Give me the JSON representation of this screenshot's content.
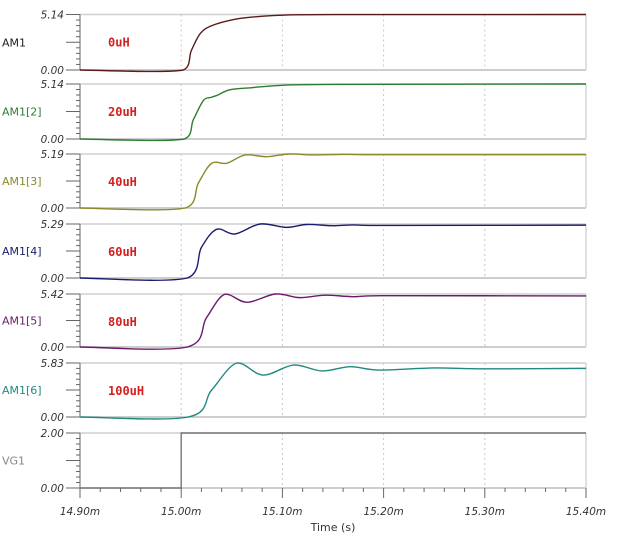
{
  "chart_data": [
    {
      "type": "line",
      "name": "AM1",
      "annotation": "0uH",
      "ylim": [
        0,
        5.14
      ],
      "yticks": [
        "0.00",
        "5.14"
      ],
      "color": "#5a1b1b",
      "label_color": "#222222",
      "points": [
        [
          14.9,
          0
        ],
        [
          15.002,
          0
        ],
        [
          15.01,
          1.8
        ],
        [
          15.019,
          3.4
        ],
        [
          15.03,
          4.1
        ],
        [
          15.05,
          4.64
        ],
        [
          15.07,
          4.9
        ],
        [
          15.1,
          5.08
        ],
        [
          15.15,
          5.13
        ],
        [
          15.4,
          5.14
        ]
      ]
    },
    {
      "type": "line",
      "name": "AM1[2]",
      "annotation": "20uH",
      "ylim": [
        0,
        5.14
      ],
      "yticks": [
        "0.00",
        "5.14"
      ],
      "color": "#2e7d32",
      "label_color": "#2e7d32",
      "points": [
        [
          14.9,
          0
        ],
        [
          15.003,
          0
        ],
        [
          15.012,
          1.8
        ],
        [
          15.022,
          3.6
        ],
        [
          15.03,
          3.9
        ],
        [
          15.036,
          4.1
        ],
        [
          15.048,
          4.6
        ],
        [
          15.07,
          4.8
        ],
        [
          15.1,
          5.02
        ],
        [
          15.15,
          5.1
        ],
        [
          15.4,
          5.14
        ]
      ]
    },
    {
      "type": "line",
      "name": "AM1[3]",
      "annotation": "40uH",
      "ylim": [
        0,
        5.19
      ],
      "yticks": [
        "0.00",
        "5.19"
      ],
      "color": "#8a8a28",
      "label_color": "#8a8a28",
      "points": [
        [
          14.9,
          0
        ],
        [
          15.004,
          0
        ],
        [
          15.017,
          2.4
        ],
        [
          15.03,
          4.29
        ],
        [
          15.045,
          4.3
        ],
        [
          15.063,
          5.09
        ],
        [
          15.085,
          4.93
        ],
        [
          15.106,
          5.19
        ],
        [
          15.13,
          5.1
        ],
        [
          15.16,
          5.15
        ],
        [
          15.2,
          5.12
        ],
        [
          15.4,
          5.13
        ]
      ]
    },
    {
      "type": "line",
      "name": "AM1[4]",
      "annotation": "60uH",
      "ylim": [
        0,
        5.29
      ],
      "yticks": [
        "0.00",
        "5.29"
      ],
      "color": "#1c1c6e",
      "label_color": "#1c1c6e",
      "points": [
        [
          14.9,
          0
        ],
        [
          15.006,
          0
        ],
        [
          15.02,
          3.0
        ],
        [
          15.035,
          4.77
        ],
        [
          15.053,
          4.31
        ],
        [
          15.078,
          5.29
        ],
        [
          15.104,
          4.96
        ],
        [
          15.124,
          5.24
        ],
        [
          15.15,
          5.12
        ],
        [
          15.17,
          5.2
        ],
        [
          15.2,
          5.15
        ],
        [
          15.4,
          5.18
        ]
      ]
    },
    {
      "type": "line",
      "name": "AM1[5]",
      "annotation": "80uH",
      "ylim": [
        0,
        5.42
      ],
      "yticks": [
        "0.00",
        "5.42"
      ],
      "color": "#6a1b6a",
      "label_color": "#6a1b6a",
      "points": [
        [
          14.9,
          0
        ],
        [
          15.006,
          0
        ],
        [
          15.025,
          3.0
        ],
        [
          15.043,
          5.39
        ],
        [
          15.065,
          4.57
        ],
        [
          15.093,
          5.42
        ],
        [
          15.117,
          5.05
        ],
        [
          15.142,
          5.3
        ],
        [
          15.17,
          5.15
        ],
        [
          15.2,
          5.25
        ],
        [
          15.4,
          5.22
        ]
      ]
    },
    {
      "type": "line",
      "name": "AM1[6]",
      "annotation": "100uH",
      "ylim": [
        0,
        5.83
      ],
      "yticks": [
        "0.00",
        "5.83"
      ],
      "color": "#1f8a80",
      "label_color": "#1f8a80",
      "points": [
        [
          14.9,
          0
        ],
        [
          15.007,
          0
        ],
        [
          15.03,
          2.9
        ],
        [
          15.055,
          5.83
        ],
        [
          15.081,
          4.53
        ],
        [
          15.111,
          5.61
        ],
        [
          15.139,
          4.97
        ],
        [
          15.167,
          5.43
        ],
        [
          15.195,
          5.07
        ],
        [
          15.25,
          5.3
        ],
        [
          15.3,
          5.2
        ],
        [
          15.4,
          5.25
        ]
      ]
    },
    {
      "type": "line",
      "name": "VG1",
      "annotation": "",
      "ylim": [
        0,
        2
      ],
      "yticks": [
        "0.00",
        "2.00"
      ],
      "color": "#777777",
      "label_color": "#888888",
      "step": true,
      "points": [
        [
          14.9,
          0
        ],
        [
          15.0,
          0
        ],
        [
          15.0,
          2
        ],
        [
          15.4,
          2
        ]
      ]
    }
  ],
  "x_axis": {
    "label": "Time (s)",
    "range": [
      14.9,
      15.4
    ],
    "ticks": [
      14.9,
      15.0,
      15.1,
      15.2,
      15.3,
      15.4
    ],
    "tick_labels": [
      "14.90m",
      "15.00m",
      "15.10m",
      "15.20m",
      "15.30m",
      "15.40m"
    ],
    "grid": "dotted vertical"
  }
}
